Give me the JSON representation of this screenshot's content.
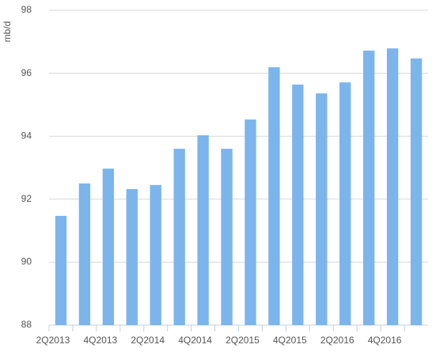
{
  "chart_data": {
    "type": "bar",
    "y_label": "mb/d",
    "categories": [
      "2Q2013",
      null,
      "4Q2013",
      null,
      "2Q2014",
      null,
      "4Q2014",
      null,
      "2Q2015",
      null,
      "4Q2015",
      null,
      "2Q2016",
      null,
      "4Q2016",
      null
    ],
    "values": [
      91.47,
      92.5,
      92.97,
      92.32,
      92.45,
      93.6,
      94.03,
      93.6,
      94.53,
      96.19,
      95.64,
      95.36,
      95.71,
      96.72,
      96.79,
      96.47
    ],
    "color": "#7cb5ec",
    "ylim": [
      88,
      98
    ],
    "yticks": [
      88,
      90,
      92,
      94,
      96,
      98
    ],
    "grid": true
  }
}
